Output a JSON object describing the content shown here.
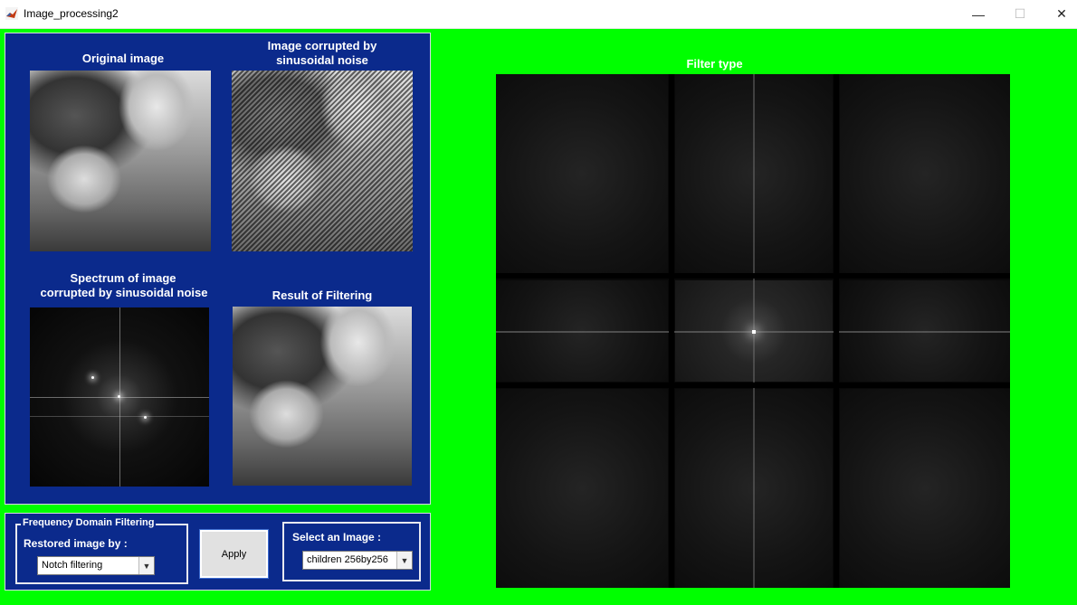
{
  "window": {
    "title": "Image_processing2",
    "minimize": "—",
    "maximize": "☐",
    "close": "✕"
  },
  "colors": {
    "background": "#00ff00",
    "panel": "#0b2a8c",
    "label_text": "#ffffff"
  },
  "images_panel": {
    "original_label": "Original image",
    "corrupted_label_line1": "Image corrupted by",
    "corrupted_label_line2": "sinusoidal noise",
    "spectrum_label_line1": "Spectrum of image",
    "spectrum_label_line2": "corrupted by sinusoidal noise",
    "result_label": "Result of Filtering"
  },
  "controls": {
    "group_title": "Frequency Domain Filtering",
    "restored_label": "Restored image by :",
    "filter_method": "Notch filtering",
    "apply_button": "Apply",
    "select_image_label": "Select an Image :",
    "selected_image": "children 256by256"
  },
  "filter_view": {
    "title": "Filter type"
  },
  "icons": {
    "app": "matlab-icon",
    "dropdown": "chevron-down-icon"
  }
}
